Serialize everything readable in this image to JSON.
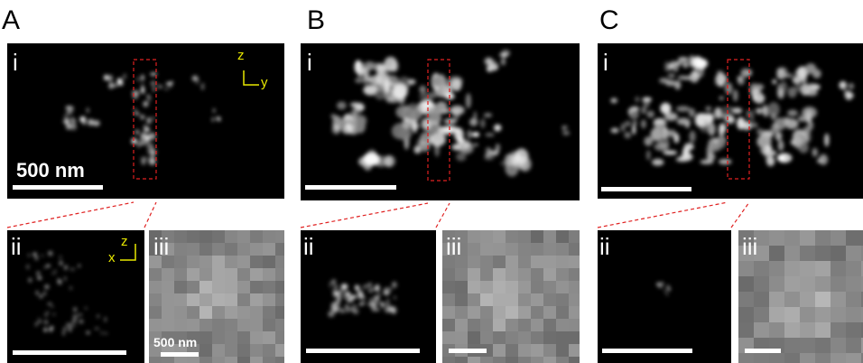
{
  "panels": [
    {
      "label": "A",
      "i": {
        "label": "i",
        "scale_label": "500 nm",
        "axes": [
          "z",
          "y"
        ]
      },
      "ii": {
        "label": "ii",
        "axes": [
          "z",
          "x"
        ]
      },
      "iii": {
        "label": "iii",
        "scale_label": "500 nm"
      }
    },
    {
      "label": "B",
      "i": {
        "label": "i"
      },
      "ii": {
        "label": "ii"
      },
      "iii": {
        "label": "iii"
      }
    },
    {
      "label": "C",
      "i": {
        "label": "i"
      },
      "ii": {
        "label": "ii"
      },
      "iii": {
        "label": "iii"
      }
    }
  ]
}
